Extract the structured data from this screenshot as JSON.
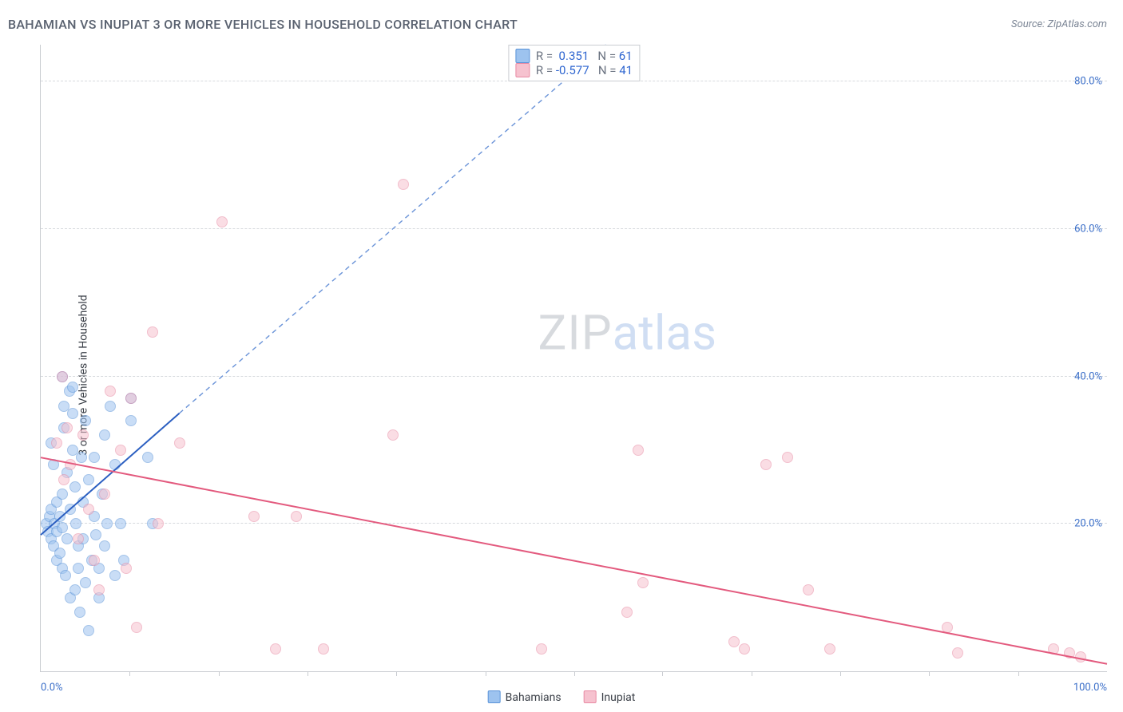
{
  "header": {
    "title": "BAHAMIAN VS INUPIAT 3 OR MORE VEHICLES IN HOUSEHOLD CORRELATION CHART",
    "source": "Source: ZipAtlas.com"
  },
  "chart": {
    "type": "scatter",
    "ylabel": "3 or more Vehicles in Household",
    "background_color": "#ffffff",
    "grid_color": "#d6d9dd",
    "axis_color": "#c9ccd1",
    "tick_label_color": "#3b6fc9",
    "tick_label_fontsize": 13,
    "xlim": [
      0,
      100
    ],
    "ylim": [
      0,
      85
    ],
    "x_ticks_minor": [
      8.3,
      16.7,
      25,
      33.3,
      41.7,
      50,
      58.3,
      66.7,
      75,
      83.3,
      91.7
    ],
    "x_ticks_labeled": [
      {
        "value": 0,
        "label": "0.0%"
      },
      {
        "value": 100,
        "label": "100.0%"
      }
    ],
    "y_gridlines": [
      {
        "value": 20,
        "label": "20.0%"
      },
      {
        "value": 40,
        "label": "40.0%"
      },
      {
        "value": 60,
        "label": "60.0%"
      },
      {
        "value": 80,
        "label": "80.0%"
      }
    ],
    "watermark": {
      "part1": "ZIP",
      "part2": "atlas"
    },
    "marker_radius": 7,
    "marker_opacity": 0.55,
    "series": [
      {
        "name": "Bahamians",
        "fill": "#9dc3ef",
        "stroke": "#5a93d8",
        "trend": {
          "solid": {
            "x1": 0,
            "y1": 18.5,
            "x2": 13,
            "y2": 35,
            "color": "#2b5fc1",
            "width": 2
          },
          "dashed": {
            "x1": 13,
            "y1": 35,
            "x2": 53,
            "y2": 85,
            "color": "#6a93d8",
            "width": 1.4,
            "dash": "6 5"
          }
        },
        "stats": {
          "R": "0.351",
          "N": "61"
        },
        "points": [
          {
            "x": 0.5,
            "y": 20
          },
          {
            "x": 0.7,
            "y": 19
          },
          {
            "x": 0.8,
            "y": 21
          },
          {
            "x": 1.0,
            "y": 18
          },
          {
            "x": 1.0,
            "y": 22
          },
          {
            "x": 1.2,
            "y": 17
          },
          {
            "x": 1.3,
            "y": 20
          },
          {
            "x": 1.5,
            "y": 23
          },
          {
            "x": 1.5,
            "y": 15
          },
          {
            "x": 1.5,
            "y": 19
          },
          {
            "x": 1.8,
            "y": 16
          },
          {
            "x": 1.8,
            "y": 21
          },
          {
            "x": 2.0,
            "y": 24
          },
          {
            "x": 2.0,
            "y": 14
          },
          {
            "x": 2.0,
            "y": 19.5
          },
          {
            "x": 2.2,
            "y": 36
          },
          {
            "x": 2.2,
            "y": 33
          },
          {
            "x": 2.3,
            "y": 13
          },
          {
            "x": 2.5,
            "y": 18
          },
          {
            "x": 2.5,
            "y": 27
          },
          {
            "x": 2.7,
            "y": 38
          },
          {
            "x": 2.8,
            "y": 10
          },
          {
            "x": 2.8,
            "y": 22
          },
          {
            "x": 3.0,
            "y": 35
          },
          {
            "x": 3.0,
            "y": 30
          },
          {
            "x": 3.2,
            "y": 11
          },
          {
            "x": 3.2,
            "y": 25
          },
          {
            "x": 3.3,
            "y": 20
          },
          {
            "x": 3.5,
            "y": 17
          },
          {
            "x": 3.5,
            "y": 14
          },
          {
            "x": 3.7,
            "y": 8
          },
          {
            "x": 3.8,
            "y": 29
          },
          {
            "x": 4.0,
            "y": 23
          },
          {
            "x": 4.0,
            "y": 18
          },
          {
            "x": 4.2,
            "y": 34
          },
          {
            "x": 4.2,
            "y": 12
          },
          {
            "x": 4.5,
            "y": 26
          },
          {
            "x": 4.5,
            "y": 5.5
          },
          {
            "x": 4.8,
            "y": 15
          },
          {
            "x": 5.0,
            "y": 21
          },
          {
            "x": 5.0,
            "y": 29
          },
          {
            "x": 5.2,
            "y": 18.5
          },
          {
            "x": 5.5,
            "y": 14
          },
          {
            "x": 5.5,
            "y": 10
          },
          {
            "x": 5.8,
            "y": 24
          },
          {
            "x": 6.0,
            "y": 32
          },
          {
            "x": 6.0,
            "y": 17
          },
          {
            "x": 6.2,
            "y": 20
          },
          {
            "x": 6.5,
            "y": 36
          },
          {
            "x": 7.0,
            "y": 13
          },
          {
            "x": 7.0,
            "y": 28
          },
          {
            "x": 7.5,
            "y": 20
          },
          {
            "x": 7.8,
            "y": 15
          },
          {
            "x": 8.5,
            "y": 34
          },
          {
            "x": 8.5,
            "y": 37
          },
          {
            "x": 10.0,
            "y": 29
          },
          {
            "x": 10.5,
            "y": 20
          },
          {
            "x": 2.0,
            "y": 40
          },
          {
            "x": 3.0,
            "y": 38.5
          },
          {
            "x": 1.0,
            "y": 31
          },
          {
            "x": 1.2,
            "y": 28
          }
        ]
      },
      {
        "name": "Inupiat",
        "fill": "#f6c2cf",
        "stroke": "#e88aa3",
        "trend": {
          "solid": {
            "x1": 0,
            "y1": 29,
            "x2": 100,
            "y2": 1,
            "color": "#e35a7e",
            "width": 2
          }
        },
        "stats": {
          "R": "-0.577",
          "N": "41"
        },
        "points": [
          {
            "x": 1.5,
            "y": 31
          },
          {
            "x": 2.0,
            "y": 40
          },
          {
            "x": 2.2,
            "y": 26
          },
          {
            "x": 2.5,
            "y": 33
          },
          {
            "x": 2.8,
            "y": 28
          },
          {
            "x": 3.5,
            "y": 18
          },
          {
            "x": 4.0,
            "y": 32
          },
          {
            "x": 4.5,
            "y": 22
          },
          {
            "x": 5.0,
            "y": 15
          },
          {
            "x": 5.5,
            "y": 11
          },
          {
            "x": 6.0,
            "y": 24
          },
          {
            "x": 6.5,
            "y": 38
          },
          {
            "x": 7.5,
            "y": 30
          },
          {
            "x": 8.0,
            "y": 14
          },
          {
            "x": 8.5,
            "y": 37
          },
          {
            "x": 9.0,
            "y": 6
          },
          {
            "x": 10.5,
            "y": 46
          },
          {
            "x": 11.0,
            "y": 20
          },
          {
            "x": 13.0,
            "y": 31
          },
          {
            "x": 17.0,
            "y": 61
          },
          {
            "x": 20.0,
            "y": 21
          },
          {
            "x": 22.0,
            "y": 3
          },
          {
            "x": 24.0,
            "y": 21
          },
          {
            "x": 26.5,
            "y": 3
          },
          {
            "x": 33.0,
            "y": 32
          },
          {
            "x": 34.0,
            "y": 66
          },
          {
            "x": 47.0,
            "y": 3
          },
          {
            "x": 56.0,
            "y": 30
          },
          {
            "x": 56.5,
            "y": 12
          },
          {
            "x": 55.0,
            "y": 8
          },
          {
            "x": 65.0,
            "y": 4
          },
          {
            "x": 66.0,
            "y": 3
          },
          {
            "x": 68.0,
            "y": 28
          },
          {
            "x": 72.0,
            "y": 11
          },
          {
            "x": 74.0,
            "y": 3
          },
          {
            "x": 85.0,
            "y": 6
          },
          {
            "x": 86.0,
            "y": 2.5
          },
          {
            "x": 95.0,
            "y": 3
          },
          {
            "x": 96.5,
            "y": 2.5
          },
          {
            "x": 97.5,
            "y": 2
          },
          {
            "x": 70.0,
            "y": 29
          }
        ]
      }
    ],
    "legend_bottom": [
      {
        "swatch_fill": "#9dc3ef",
        "swatch_stroke": "#5a93d8",
        "label": "Bahamians"
      },
      {
        "swatch_fill": "#f6c2cf",
        "swatch_stroke": "#e88aa3",
        "label": "Inupiat"
      }
    ]
  }
}
